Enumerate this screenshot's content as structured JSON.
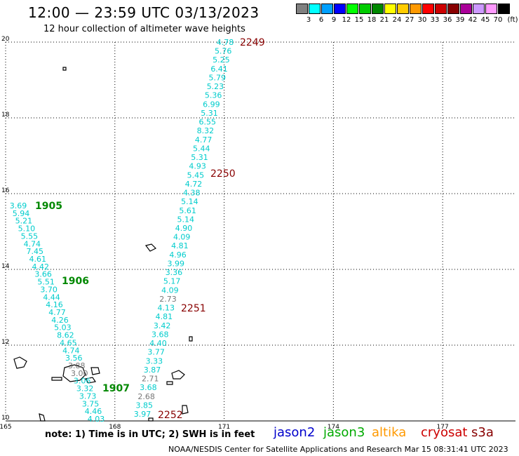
{
  "header": {
    "title": "12:00 — 23:59 UTC 03/13/2023",
    "subtitle": "12 hour collection of altimeter wave heights"
  },
  "legend": {
    "unit": "(ft)",
    "items": [
      {
        "label": "3",
        "color": "#808080"
      },
      {
        "label": "6",
        "color": "#00ffff"
      },
      {
        "label": "9",
        "color": "#00a0ff"
      },
      {
        "label": "12",
        "color": "#0000ff"
      },
      {
        "label": "15",
        "color": "#00ff00"
      },
      {
        "label": "18",
        "color": "#00cc00"
      },
      {
        "label": "21",
        "color": "#008800"
      },
      {
        "label": "24",
        "color": "#ffff00"
      },
      {
        "label": "27",
        "color": "#ffcc00"
      },
      {
        "label": "30",
        "color": "#ff9900"
      },
      {
        "label": "33",
        "color": "#ff0000"
      },
      {
        "label": "36",
        "color": "#cc0000"
      },
      {
        "label": "39",
        "color": "#880000"
      },
      {
        "label": "42",
        "color": "#aa0099"
      },
      {
        "label": "45",
        "color": "#cc99ff"
      },
      {
        "label": "70",
        "color": "#ff99ff"
      },
      {
        "label": "",
        "color": "#000000"
      }
    ]
  },
  "axes": {
    "lat_labels": [
      "20",
      "18",
      "16",
      "14",
      "12",
      "10"
    ],
    "lon_labels": [
      "165",
      "168",
      "171",
      "174",
      "177"
    ],
    "lat_range": [
      10,
      20
    ],
    "lon_range": [
      165,
      179
    ]
  },
  "track_values": {
    "t1": [
      "4.78",
      "5.76",
      "5.25",
      "6.41",
      "5.79",
      "5.23",
      "5.36",
      "6.99",
      "5.31",
      "6.55",
      "8.32",
      "4.77",
      "5.44",
      "5.31",
      "4.93",
      "5.45",
      "4.72",
      "4.38",
      "5.14",
      "5.61",
      "5.14",
      "4.90",
      "4.09",
      "4.81",
      "4.96",
      "3.99",
      "3.36",
      "5.17",
      "4.09",
      "2.73",
      "4.13",
      "4.81",
      "3.42",
      "3.68",
      "4.40",
      "3.77",
      "3.33",
      "3.87",
      "2.71",
      "3.68",
      "2.68",
      "3.85",
      "3.97"
    ],
    "t2": [
      "3.69",
      "5.94",
      "5.21",
      "5.10",
      "5.55",
      "4.74",
      "7.45",
      "4.61",
      "4.42",
      "3.66",
      "5.51",
      "3.70",
      "4.44",
      "4.16",
      "4.77",
      "4.26",
      "5.03",
      "8.62",
      "4.65",
      "4.74",
      "3.56",
      "3.88",
      "3.00",
      "3.06",
      "3.32",
      "3.73",
      "3.75",
      "4.46",
      "4.03"
    ],
    "gray_values": [
      "2.73",
      "2.71",
      "2.68",
      "3.00",
      "3.88"
    ]
  },
  "time_labels": {
    "green": [
      "1905",
      "1906",
      "1907"
    ],
    "red": [
      "2249",
      "2250",
      "2251",
      "2252"
    ]
  },
  "footer": {
    "note": "note: 1) Time is in UTC; 2) SWH is in feet",
    "satellites": [
      {
        "name": "jason2",
        "color": "#0000cc"
      },
      {
        "name": "jason3",
        "color": "#00aa00"
      },
      {
        "name": "altika",
        "color": "#ff9900"
      },
      {
        "name": "cryosat",
        "color": "#cc0000"
      },
      {
        "name": "s3a",
        "color": "#880000"
      }
    ],
    "credit": "NOAA/NESDIS Center for Satellite Applications and Research   Mar 15 08:31:41 UTC 2023"
  }
}
